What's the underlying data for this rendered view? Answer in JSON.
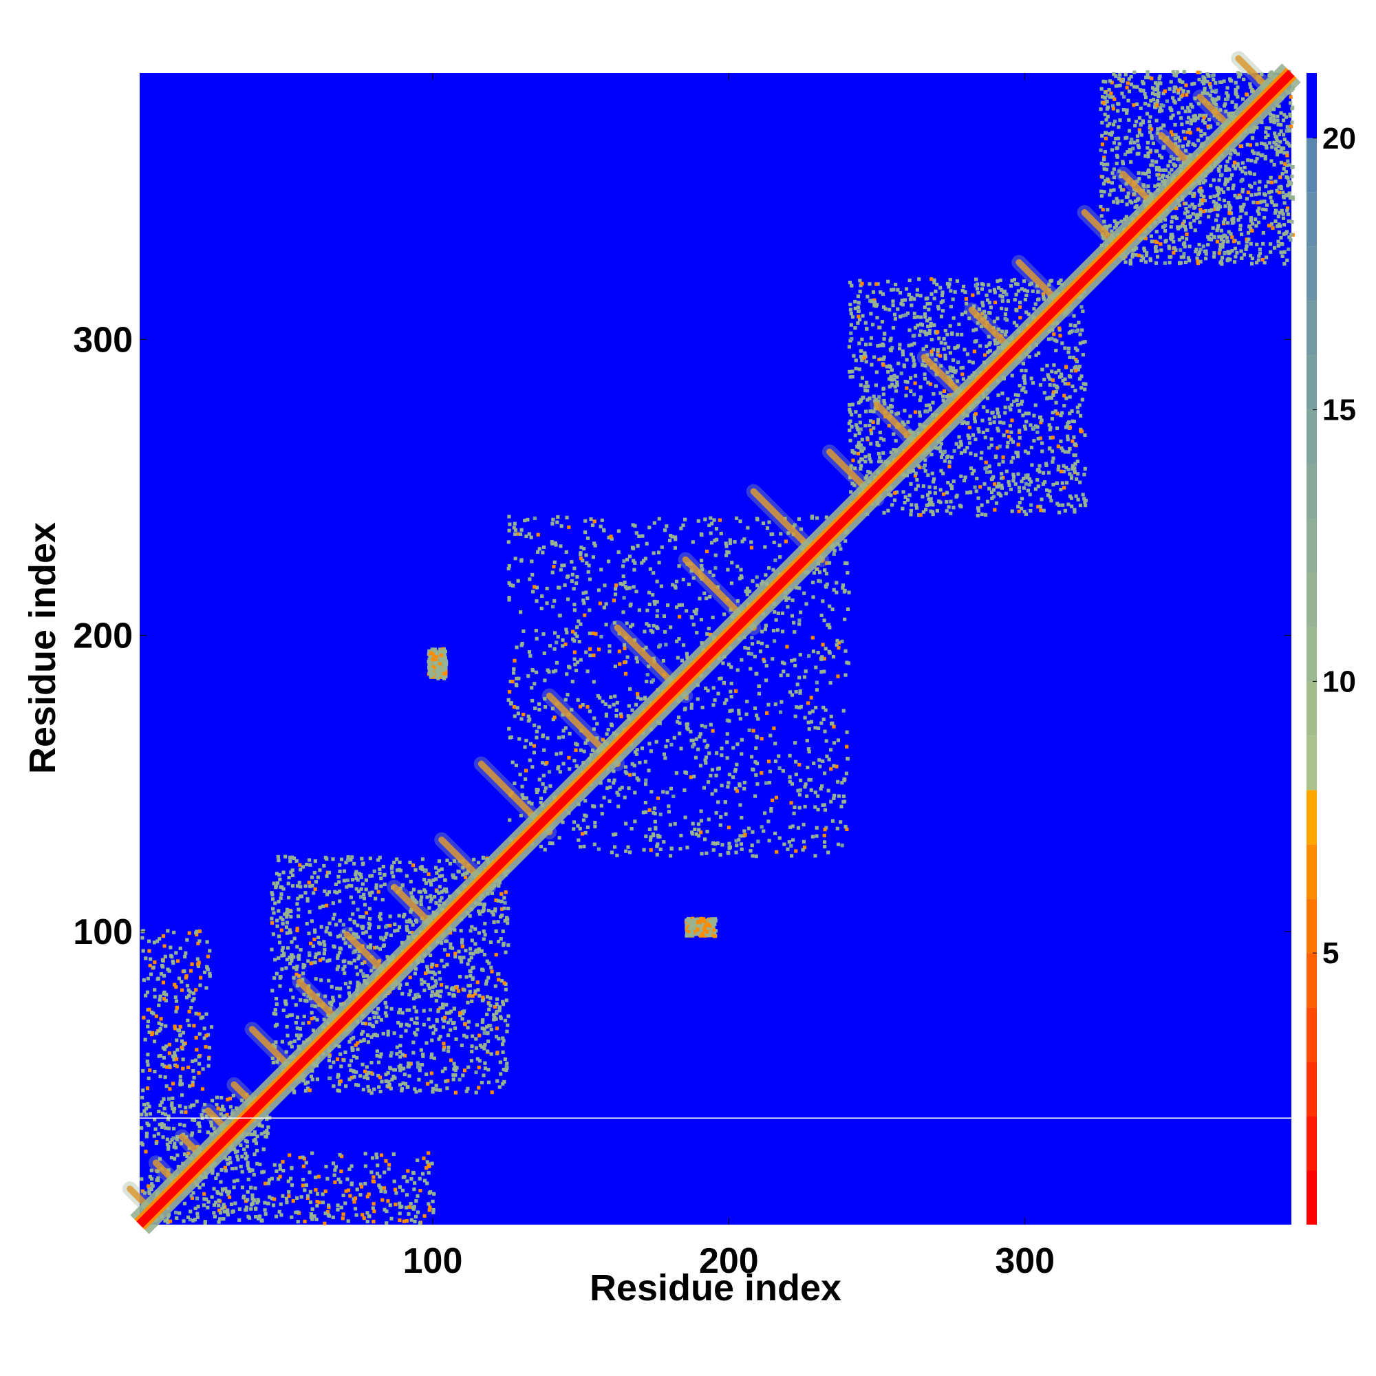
{
  "chart_data": {
    "type": "heatmap",
    "title": "",
    "xlabel": "Residue index",
    "ylabel": "Residue index",
    "xlim": [
      1,
      390
    ],
    "ylim": [
      1,
      390
    ],
    "xticks": [
      100,
      200,
      300
    ],
    "yticks": [
      100,
      200,
      300
    ],
    "colorbar": {
      "ticks": [
        5,
        10,
        15,
        20
      ],
      "range": [
        0,
        21.2
      ],
      "levels": [
        {
          "to": 1,
          "color": "#ff0000"
        },
        {
          "to": 2,
          "color": "#ff1a00"
        },
        {
          "to": 3,
          "color": "#ff3300"
        },
        {
          "to": 4,
          "color": "#ff4a00"
        },
        {
          "to": 5,
          "color": "#ff6000"
        },
        {
          "to": 6,
          "color": "#ff7700"
        },
        {
          "to": 7,
          "color": "#ff8c00"
        },
        {
          "to": 8,
          "color": "#ffa500"
        },
        {
          "to": 9,
          "color": "#a9c18b"
        },
        {
          "to": 10,
          "color": "#a3bd8d"
        },
        {
          "to": 11,
          "color": "#9cb890"
        },
        {
          "to": 12,
          "color": "#96b393"
        },
        {
          "to": 13,
          "color": "#8faf96"
        },
        {
          "to": 14,
          "color": "#88a99a"
        },
        {
          "to": 15,
          "color": "#81a49d"
        },
        {
          "to": 16,
          "color": "#7a9fa1"
        },
        {
          "to": 17,
          "color": "#7299a4"
        },
        {
          "to": 18,
          "color": "#6a93a8"
        },
        {
          "to": 19,
          "color": "#628dab"
        },
        {
          "to": 20,
          "color": "#5a87af"
        },
        {
          "to": 21.2,
          "color": "#0000ff"
        }
      ]
    },
    "background_color": "#0000ff",
    "diagonal_band": {
      "from": 1,
      "to": 390,
      "color": "#ff0000"
    },
    "white_gap_row": 37,
    "blocks": [
      {
        "x": [
          1,
          45
        ],
        "y": [
          1,
          45
        ],
        "intensity": "medium"
      },
      {
        "x": [
          45,
          125
        ],
        "y": [
          45,
          125
        ],
        "intensity": "high"
      },
      {
        "x": [
          125,
          240
        ],
        "y": [
          125,
          240
        ],
        "intensity": "high"
      },
      {
        "x": [
          240,
          320
        ],
        "y": [
          240,
          320
        ],
        "intensity": "high"
      },
      {
        "x": [
          325,
          390
        ],
        "y": [
          325,
          390
        ],
        "intensity": "high"
      }
    ],
    "off_diagonal_contacts": [
      {
        "x": [
          1,
          25
        ],
        "y": [
          45,
          100
        ]
      },
      {
        "x": [
          45,
          100
        ],
        "y": [
          1,
          25
        ]
      },
      {
        "x": [
          185,
          195
        ],
        "y": [
          98,
          104
        ]
      },
      {
        "x": [
          98,
          104
        ],
        "y": [
          185,
          195
        ]
      }
    ]
  }
}
